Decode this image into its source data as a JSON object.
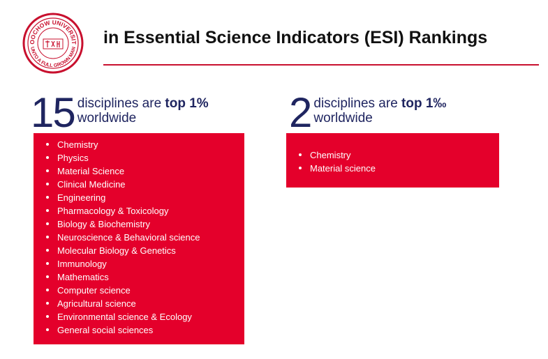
{
  "header": {
    "logo": {
      "icon": "university-seal-icon",
      "seal_text_top": "SOOCHOW UNIVERSITY",
      "seal_text_bottom": "UNTO A FULL GROWN MAN",
      "color": "#c8102e"
    },
    "title": "in Essential Science Indicators (ESI) Rankings",
    "rule_color": "#c8102e"
  },
  "left_panel": {
    "count": "15",
    "text_prefix": "disciplines are ",
    "text_bold": "top 1%",
    "text_line2": "worldwide",
    "items": [
      "Chemistry",
      "Physics",
      "Material Science",
      "Clinical Medicine",
      "Engineering",
      "Pharmacology & Toxicology",
      "Biology & Biochemistry",
      "Neuroscience & Behavioral science",
      "Molecular Biology & Genetics",
      "Immunology",
      "Mathematics",
      "Computer science",
      "Agricultural science",
      "Environmental science & Ecology",
      "General social sciences"
    ]
  },
  "right_panel": {
    "count": "2",
    "text_prefix": "disciplines are ",
    "text_bold": "top 1‰",
    "text_line2": "worldwide",
    "items": [
      "Chemistry",
      "Material science"
    ]
  },
  "colors": {
    "box_red": "#e4002b",
    "heading_navy": "#1f2560"
  }
}
